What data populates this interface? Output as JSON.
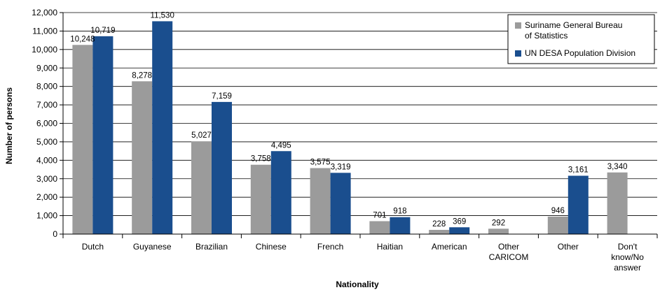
{
  "chart_data": {
    "type": "bar",
    "title": "",
    "xlabel": "Nationality",
    "ylabel": "Number of persons",
    "ylim": [
      0,
      12000
    ],
    "ytick_step": 1000,
    "grid": true,
    "legend_position": "top-right",
    "categories": [
      [
        "Dutch"
      ],
      [
        "Guyanese"
      ],
      [
        "Brazilian"
      ],
      [
        "Chinese"
      ],
      [
        "French"
      ],
      [
        "Haitian"
      ],
      [
        "American"
      ],
      [
        "Other",
        "CARICOM"
      ],
      [
        "Other"
      ],
      [
        "Don't",
        "know/No",
        "answer"
      ]
    ],
    "series": [
      {
        "name": [
          "Suriname General Bureau",
          "of Statistics"
        ],
        "color": "#9b9b9b",
        "values": [
          10248,
          8278,
          5027,
          3758,
          3575,
          701,
          228,
          292,
          946,
          3340
        ],
        "labels": [
          "10,248",
          "8,278",
          "5,027",
          "3,758",
          "3,575",
          "701",
          "228",
          "292",
          "946",
          "3,340"
        ]
      },
      {
        "name": [
          "UN DESA Population Division"
        ],
        "color": "#1a4e8e",
        "values": [
          10719,
          11530,
          7159,
          4495,
          3319,
          918,
          369,
          null,
          3161,
          null
        ],
        "labels": [
          "10,719",
          "11,530",
          "7,159",
          "4,495",
          "3,319",
          "918",
          "369",
          null,
          "3,161",
          null
        ]
      }
    ]
  }
}
